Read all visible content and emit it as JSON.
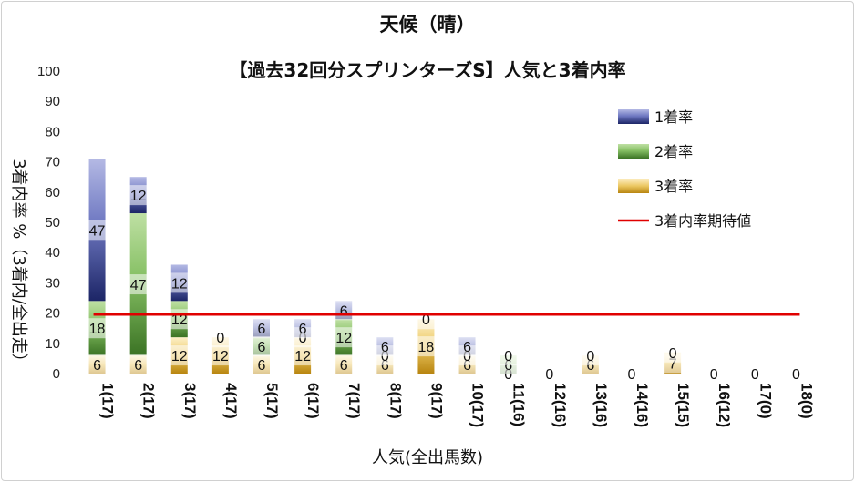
{
  "chart_data": {
    "type": "bar",
    "stacked": true,
    "title": "天候（晴）",
    "subtitle": "【過去32回分スプリンターズS】人気と3着内率",
    "xlabel": "人気(全出馬数)",
    "ylabel": "3着内率 %（3着内/全出走）",
    "ylim": [
      0,
      100
    ],
    "yticks": [
      0,
      10,
      20,
      30,
      40,
      50,
      60,
      70,
      80,
      90,
      100
    ],
    "categories": [
      "1(17)",
      "2(17)",
      "3(17)",
      "4(17)",
      "5(17)",
      "6(17)",
      "7(17)",
      "8(17)",
      "9(17)",
      "10(17)",
      "11(16)",
      "12(16)",
      "13(16)",
      "14(16)",
      "15(15)",
      "16(12)",
      "17(0)",
      "18(0)"
    ],
    "series": [
      {
        "name": "3着率",
        "color": "#e0b040",
        "values": [
          6,
          6,
          12,
          12,
          6,
          12,
          6,
          6,
          18,
          6,
          0,
          0,
          6,
          0,
          7,
          0,
          0,
          0
        ],
        "labels": [
          "6",
          "6",
          "12",
          "12",
          "6",
          "12",
          "6",
          "6",
          "18",
          "6",
          "0",
          "0",
          "6",
          "0",
          "7",
          "0",
          "0",
          "0"
        ]
      },
      {
        "name": "2着率",
        "color": "#70ad47",
        "values": [
          18,
          47,
          12,
          0,
          6,
          0,
          12,
          0,
          0,
          0,
          6,
          0,
          0,
          0,
          0,
          0,
          0,
          0
        ],
        "labels": [
          "18",
          "47",
          "12",
          "",
          "6",
          "0",
          "12",
          "0",
          "",
          "0",
          "6",
          "",
          "",
          "",
          "",
          "",
          "",
          ""
        ]
      },
      {
        "name": "1着率",
        "color": "#3a4a9a",
        "values": [
          47,
          12,
          12,
          0,
          6,
          6,
          6,
          6,
          0,
          6,
          0,
          0,
          0,
          0,
          0,
          0,
          0,
          0
        ],
        "labels": [
          "47",
          "12",
          "12",
          "0",
          "6",
          "6",
          "6",
          "6",
          "0",
          "6",
          "0",
          "",
          "0",
          "",
          "0",
          "",
          "",
          ""
        ]
      }
    ],
    "reference_line": {
      "name": "3着内率期待値",
      "value": 19.5,
      "color": "#e00000"
    },
    "legend": {
      "placement": "top-right",
      "order": [
        "1着率",
        "2着率",
        "3着率",
        "3着内率期待値"
      ]
    },
    "grid": false
  }
}
